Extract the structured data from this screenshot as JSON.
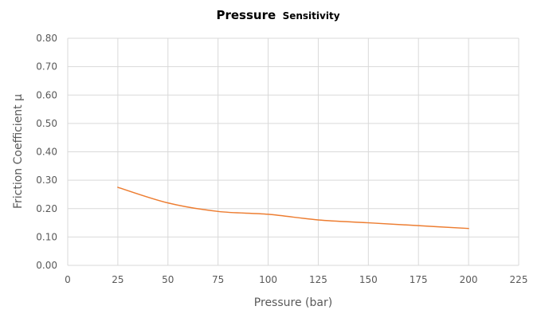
{
  "chart_data": {
    "type": "line",
    "title": "Pressure",
    "title_suffix": "Sensitivity",
    "xlabel": "Pressure (bar)",
    "ylabel": "Friction Coefficient µ",
    "xlim": [
      0,
      225
    ],
    "ylim": [
      0,
      0.8
    ],
    "xticks": [
      "0",
      "25",
      "50",
      "75",
      "100",
      "125",
      "150",
      "175",
      "200",
      "225"
    ],
    "yticks": [
      "0.00",
      "0.10",
      "0.20",
      "0.30",
      "0.40",
      "0.50",
      "0.60",
      "0.70",
      "0.80"
    ],
    "grid": true,
    "legend": "none",
    "series": [
      {
        "color": "#ED7D31",
        "x": [
          25,
          50,
          75,
          100,
          125,
          150,
          175,
          200
        ],
        "y": [
          0.275,
          0.22,
          0.19,
          0.18,
          0.16,
          0.15,
          0.14,
          0.13
        ]
      }
    ]
  }
}
